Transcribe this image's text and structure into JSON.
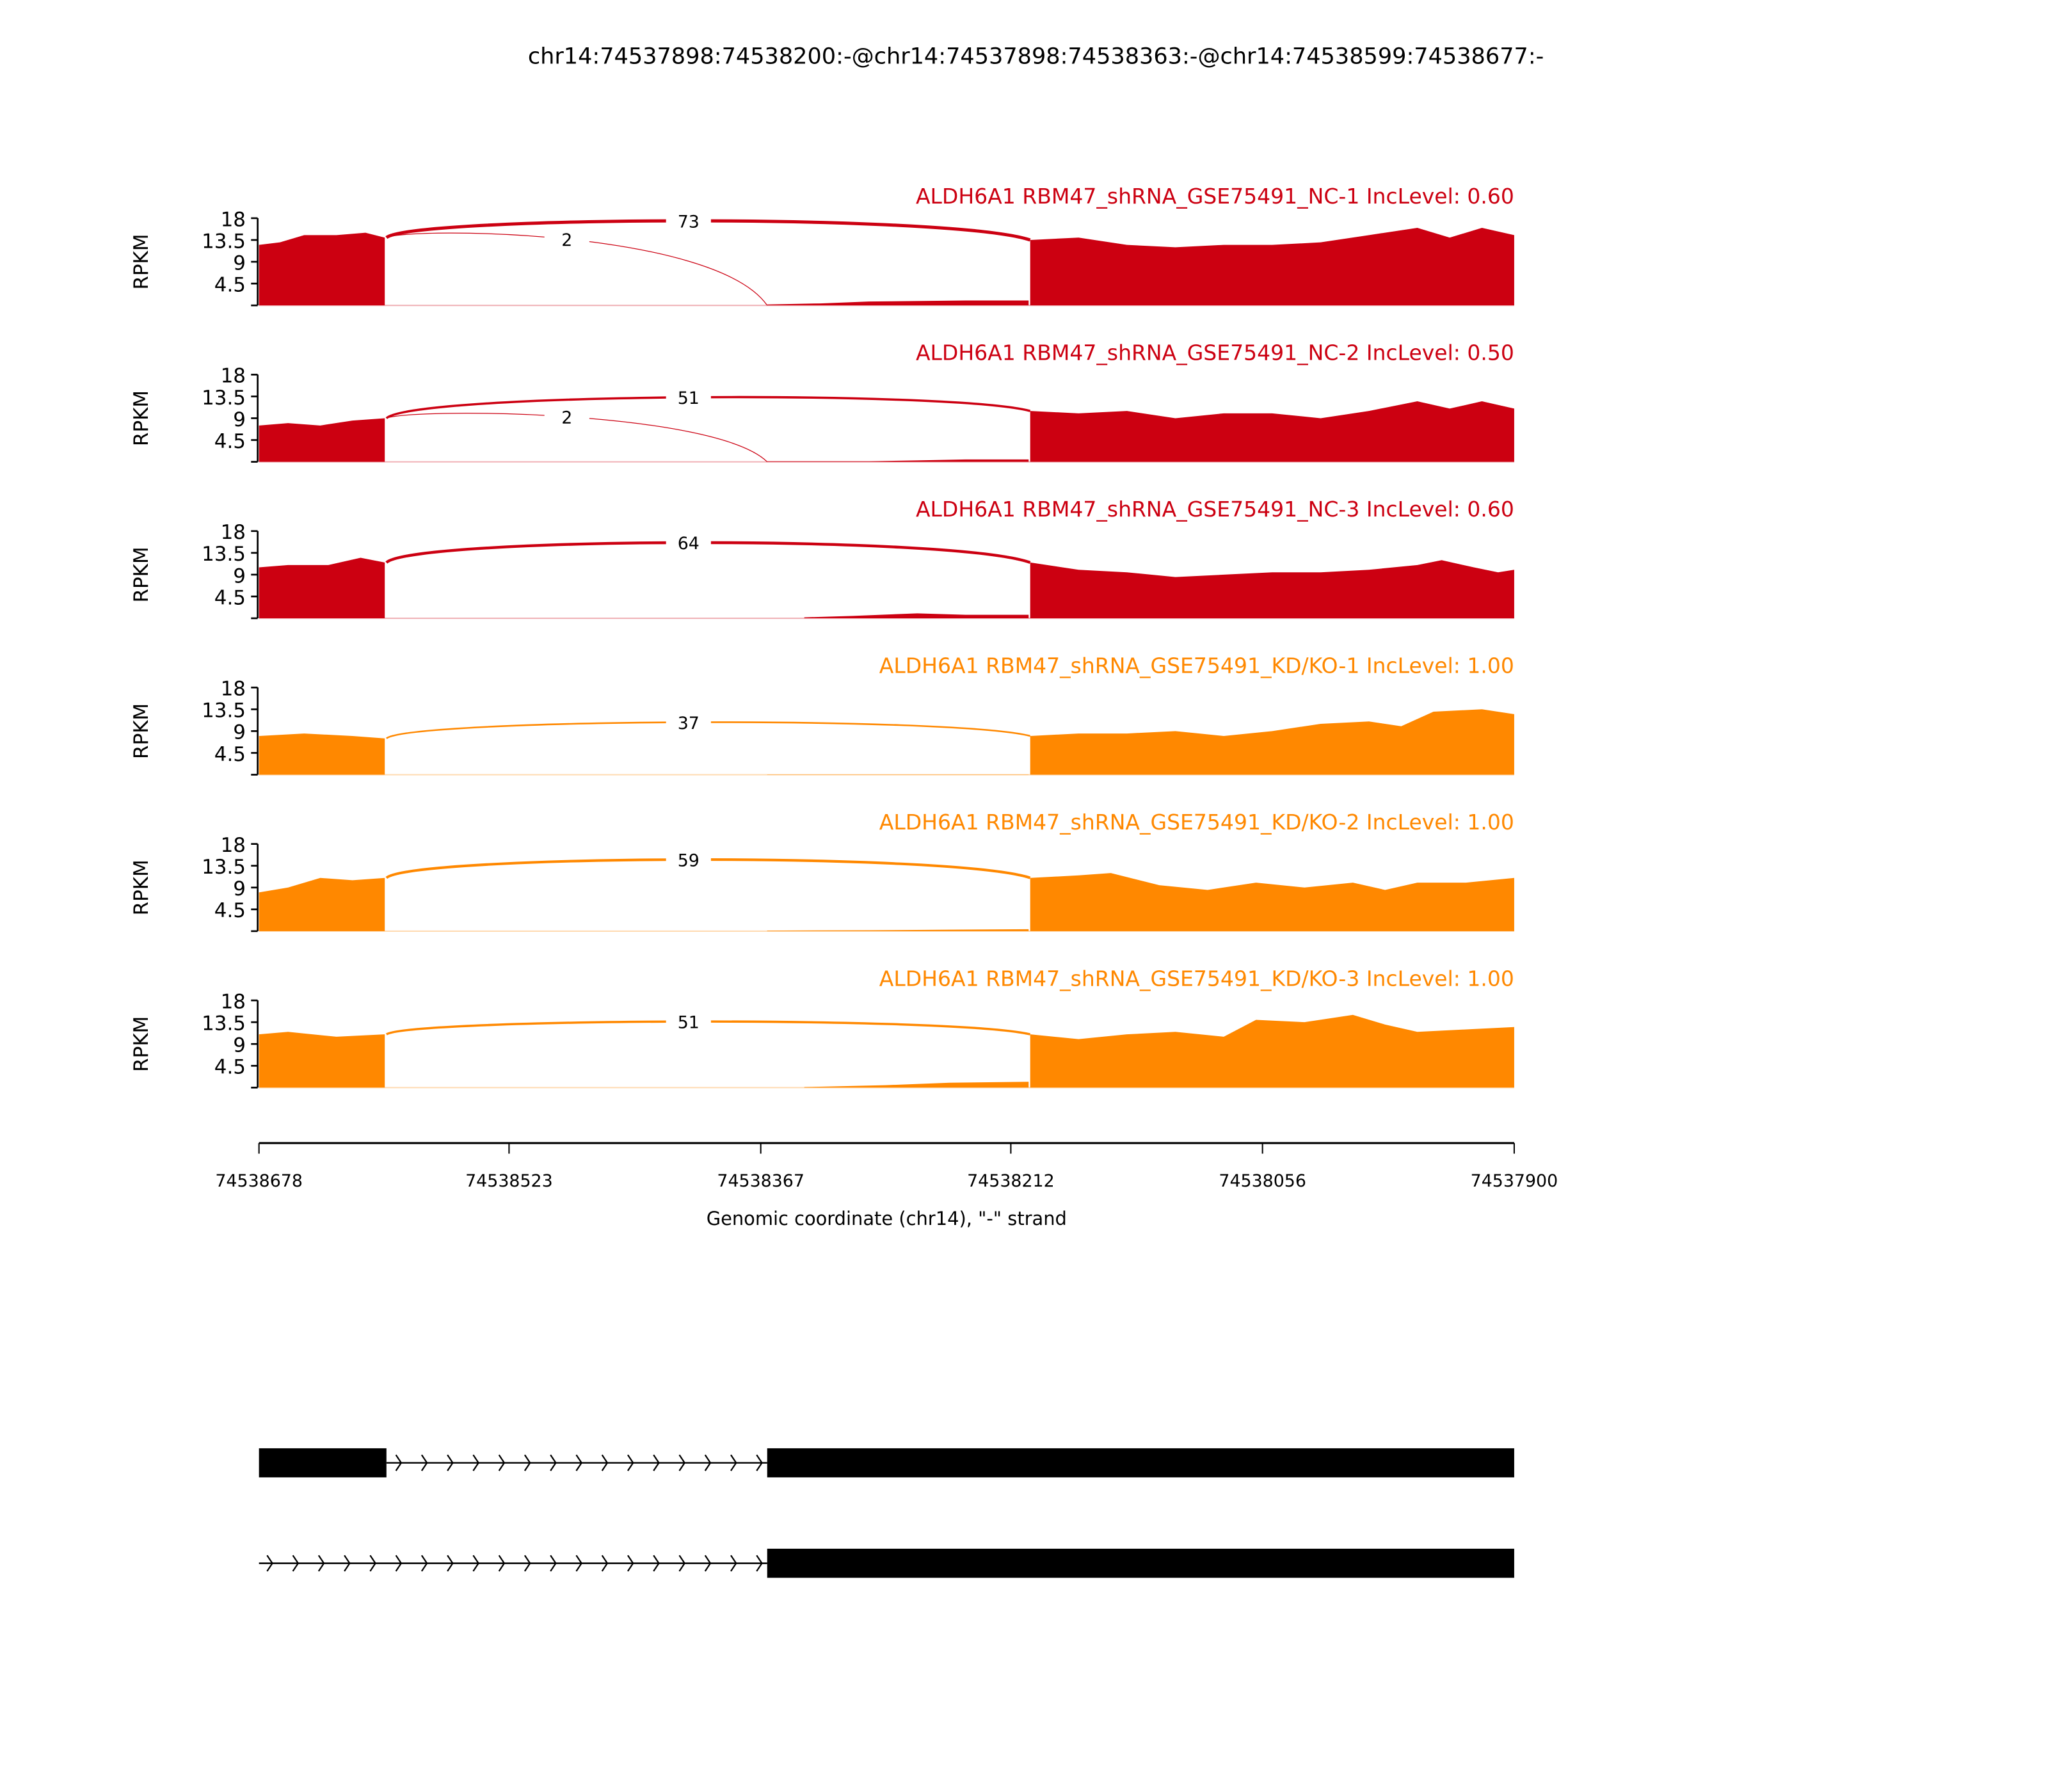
{
  "chart_data": {
    "type": "area",
    "title": "chr14:74537898:74538200:-@chr14:74537898:74538363:-@chr14:74538599:74538677:-",
    "xlabel": "Genomic coordinate (chr14), \"-\" strand",
    "ylabel": "RPKM",
    "xlim": [
      74538678,
      74537900
    ],
    "x_ticks": [
      "74538678",
      "74538523",
      "74538367",
      "74538212",
      "74538056",
      "74537900"
    ],
    "ylim": [
      0,
      18
    ],
    "y_ticks": [
      "4.5",
      "9",
      "13.5",
      "18"
    ],
    "colors": {
      "NC": "#cc0011",
      "KD": "#ff8800",
      "gene": "#000000"
    },
    "tracks": [
      {
        "label": "ALDH6A1 RBM47_shRNA_GSE75491_NC-1 IncLevel: 0.60",
        "group": "NC",
        "coverage": [
          [
            [
              74538678,
              12.5
            ],
            [
              74538665,
              13
            ],
            [
              74538650,
              14.5
            ],
            [
              74538630,
              14.5
            ],
            [
              74538612,
              15
            ],
            [
              74538600,
              14
            ]
          ],
          [
            [
              74538363,
              0.2
            ],
            [
              74538330,
              0.4
            ],
            [
              74538300,
              0.8
            ],
            [
              74538240,
              1
            ],
            [
              74538201,
              1
            ]
          ],
          [
            [
              74538200,
              13.5
            ],
            [
              74538170,
              14
            ],
            [
              74538140,
              12.5
            ],
            [
              74538110,
              12
            ],
            [
              74538080,
              12.5
            ],
            [
              74538050,
              12.5
            ],
            [
              74538020,
              13
            ],
            [
              74537990,
              14.5
            ],
            [
              74537960,
              16
            ],
            [
              74537940,
              14
            ],
            [
              74537920,
              16
            ],
            [
              74537900,
              14.5
            ]
          ]
        ],
        "junctions": [
          {
            "from": 74538599,
            "to": 74538200,
            "count": "73"
          },
          {
            "from": 74538599,
            "to": 74538363,
            "count": "2"
          }
        ]
      },
      {
        "label": "ALDH6A1 RBM47_shRNA_GSE75491_NC-2 IncLevel: 0.50",
        "group": "NC",
        "coverage": [
          [
            [
              74538678,
              7.5
            ],
            [
              74538660,
              8
            ],
            [
              74538640,
              7.5
            ],
            [
              74538620,
              8.5
            ],
            [
              74538600,
              9
            ]
          ],
          [
            [
              74538363,
              0.1
            ],
            [
              74538300,
              0.1
            ],
            [
              74538270,
              0.3
            ],
            [
              74538240,
              0.5
            ],
            [
              74538201,
              0.5
            ]
          ],
          [
            [
              74538200,
              10.5
            ],
            [
              74538170,
              10
            ],
            [
              74538140,
              10.5
            ],
            [
              74538110,
              9
            ],
            [
              74538080,
              10
            ],
            [
              74538050,
              10
            ],
            [
              74538020,
              9
            ],
            [
              74537990,
              10.5
            ],
            [
              74537960,
              12.5
            ],
            [
              74537940,
              11
            ],
            [
              74537920,
              12.5
            ],
            [
              74537900,
              11
            ]
          ]
        ],
        "junctions": [
          {
            "from": 74538599,
            "to": 74538200,
            "count": "51"
          },
          {
            "from": 74538599,
            "to": 74538363,
            "count": "2"
          }
        ]
      },
      {
        "label": "ALDH6A1 RBM47_shRNA_GSE75491_NC-3 IncLevel: 0.60",
        "group": "NC",
        "coverage": [
          [
            [
              74538678,
              10.5
            ],
            [
              74538660,
              11
            ],
            [
              74538635,
              11
            ],
            [
              74538615,
              12.5
            ],
            [
              74538600,
              11.5
            ]
          ],
          [
            [
              74538340,
              0.2
            ],
            [
              74538310,
              0.5
            ],
            [
              74538270,
              1
            ],
            [
              74538240,
              0.7
            ],
            [
              74538201,
              0.7
            ]
          ],
          [
            [
              74538200,
              11.5
            ],
            [
              74538170,
              10
            ],
            [
              74538140,
              9.5
            ],
            [
              74538110,
              8.5
            ],
            [
              74538080,
              9
            ],
            [
              74538050,
              9.5
            ],
            [
              74538020,
              9.5
            ],
            [
              74537990,
              10
            ],
            [
              74537960,
              11
            ],
            [
              74537945,
              12
            ],
            [
              74537925,
              10.5
            ],
            [
              74537910,
              9.5
            ],
            [
              74537900,
              10
            ]
          ]
        ],
        "junctions": [
          {
            "from": 74538599,
            "to": 74538200,
            "count": "64"
          }
        ]
      },
      {
        "label": "ALDH6A1 RBM47_shRNA_GSE75491_KD/KO-1 IncLevel: 1.00",
        "group": "KD",
        "coverage": [
          [
            [
              74538678,
              8
            ],
            [
              74538650,
              8.5
            ],
            [
              74538620,
              8
            ],
            [
              74538600,
              7.5
            ]
          ],
          [
            [
              74538363,
              0.05
            ],
            [
              74538201,
              0.05
            ]
          ],
          [
            [
              74538200,
              8
            ],
            [
              74538170,
              8.5
            ],
            [
              74538140,
              8.5
            ],
            [
              74538110,
              9
            ],
            [
              74538080,
              8
            ],
            [
              74538050,
              9
            ],
            [
              74538020,
              10.5
            ],
            [
              74537990,
              11
            ],
            [
              74537970,
              10
            ],
            [
              74537950,
              13
            ],
            [
              74537920,
              13.5
            ],
            [
              74537900,
              12.5
            ]
          ]
        ],
        "junctions": [
          {
            "from": 74538599,
            "to": 74538200,
            "count": "37"
          }
        ]
      },
      {
        "label": "ALDH6A1 RBM47_shRNA_GSE75491_KD/KO-2 IncLevel: 1.00",
        "group": "KD",
        "coverage": [
          [
            [
              74538678,
              8
            ],
            [
              74538660,
              9
            ],
            [
              74538640,
              11
            ],
            [
              74538620,
              10.5
            ],
            [
              74538600,
              11
            ]
          ],
          [
            [
              74538363,
              0.1
            ],
            [
              74538300,
              0.2
            ],
            [
              74538250,
              0.3
            ],
            [
              74538201,
              0.4
            ]
          ],
          [
            [
              74538200,
              11
            ],
            [
              74538170,
              11.5
            ],
            [
              74538150,
              12
            ],
            [
              74538120,
              9.5
            ],
            [
              74538090,
              8.5
            ],
            [
              74538060,
              10
            ],
            [
              74538030,
              9
            ],
            [
              74538000,
              10
            ],
            [
              74537980,
              8.5
            ],
            [
              74537960,
              10
            ],
            [
              74537930,
              10
            ],
            [
              74537900,
              11
            ]
          ]
        ],
        "junctions": [
          {
            "from": 74538599,
            "to": 74538200,
            "count": "59"
          }
        ]
      },
      {
        "label": "ALDH6A1 RBM47_shRNA_GSE75491_KD/KO-3 IncLevel: 1.00",
        "group": "KD",
        "coverage": [
          [
            [
              74538678,
              11
            ],
            [
              74538660,
              11.5
            ],
            [
              74538630,
              10.5
            ],
            [
              74538600,
              11
            ]
          ],
          [
            [
              74538340,
              0.1
            ],
            [
              74538290,
              0.5
            ],
            [
              74538250,
              1
            ],
            [
              74538201,
              1.2
            ]
          ],
          [
            [
              74538200,
              11
            ],
            [
              74538170,
              10
            ],
            [
              74538140,
              11
            ],
            [
              74538110,
              11.5
            ],
            [
              74538080,
              10.5
            ],
            [
              74538060,
              14
            ],
            [
              74538030,
              13.5
            ],
            [
              74538000,
              15
            ],
            [
              74537980,
              13
            ],
            [
              74537960,
              11.5
            ],
            [
              74537930,
              12
            ],
            [
              74537900,
              12.5
            ]
          ]
        ],
        "junctions": [
          {
            "from": 74538599,
            "to": 74538200,
            "count": "51"
          }
        ]
      }
    ],
    "gene_models": [
      {
        "exons": [
          [
            74538678,
            74538599
          ],
          [
            74538363,
            74537900
          ]
        ],
        "introns": [
          [
            74538599,
            74538363
          ]
        ]
      },
      {
        "exons": [
          [
            74538363,
            74537900
          ]
        ],
        "introns": [
          [
            74538678,
            74538363
          ]
        ]
      }
    ]
  }
}
